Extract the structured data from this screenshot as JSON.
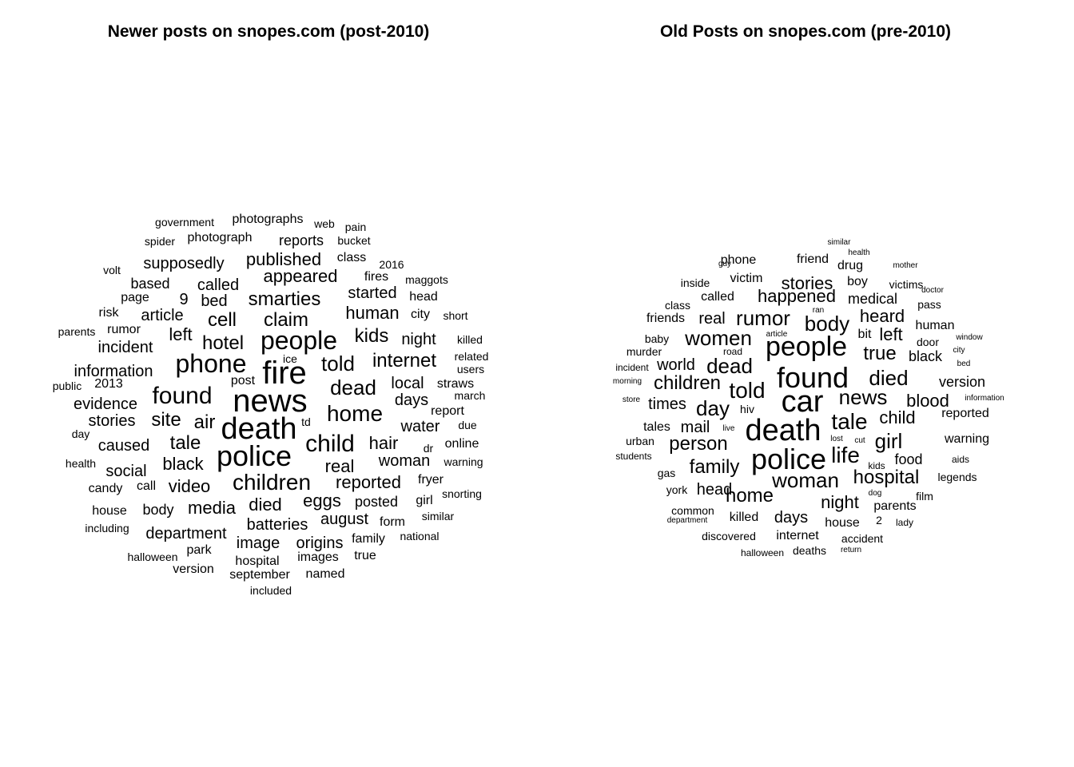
{
  "chart_data": [
    {
      "type": "wordcloud",
      "title": "Newer posts on snopes.com (post-2010)",
      "words": [
        {
          "text": "news",
          "weight": 10
        },
        {
          "text": "fire",
          "weight": 9
        },
        {
          "text": "death",
          "weight": 9
        },
        {
          "text": "police",
          "weight": 9
        },
        {
          "text": "people",
          "weight": 8
        },
        {
          "text": "phone",
          "weight": 8
        },
        {
          "text": "found",
          "weight": 8
        },
        {
          "text": "children",
          "weight": 7
        },
        {
          "text": "child",
          "weight": 7
        },
        {
          "text": "home",
          "weight": 7
        },
        {
          "text": "dead",
          "weight": 6
        },
        {
          "text": "told",
          "weight": 6
        },
        {
          "text": "smarties",
          "weight": 6
        },
        {
          "text": "claim",
          "weight": 6
        },
        {
          "text": "cell",
          "weight": 6
        },
        {
          "text": "hotel",
          "weight": 6
        },
        {
          "text": "internet",
          "weight": 6
        },
        {
          "text": "kids",
          "weight": 6
        },
        {
          "text": "tale",
          "weight": 6
        },
        {
          "text": "site",
          "weight": 6
        },
        {
          "text": "air",
          "weight": 6
        },
        {
          "text": "hair",
          "weight": 5
        },
        {
          "text": "real",
          "weight": 5
        },
        {
          "text": "black",
          "weight": 5
        },
        {
          "text": "video",
          "weight": 5
        },
        {
          "text": "media",
          "weight": 5
        },
        {
          "text": "died",
          "weight": 5
        },
        {
          "text": "eggs",
          "weight": 5
        },
        {
          "text": "reported",
          "weight": 5
        },
        {
          "text": "appeared",
          "weight": 5
        },
        {
          "text": "published",
          "weight": 5
        },
        {
          "text": "human",
          "weight": 5
        },
        {
          "text": "started",
          "weight": 4
        },
        {
          "text": "batteries",
          "weight": 4
        },
        {
          "text": "woman",
          "weight": 4
        },
        {
          "text": "left",
          "weight": 4
        },
        {
          "text": "article",
          "weight": 4
        },
        {
          "text": "bed",
          "weight": 4
        },
        {
          "text": "9",
          "weight": 4
        },
        {
          "text": "called",
          "weight": 4
        },
        {
          "text": "information",
          "weight": 4
        },
        {
          "text": "incident",
          "weight": 4
        },
        {
          "text": "evidence",
          "weight": 4
        },
        {
          "text": "stories",
          "weight": 4
        },
        {
          "text": "caused",
          "weight": 4
        },
        {
          "text": "social",
          "weight": 4
        },
        {
          "text": "local",
          "weight": 4
        },
        {
          "text": "days",
          "weight": 4
        },
        {
          "text": "water",
          "weight": 4
        },
        {
          "text": "night",
          "weight": 4
        },
        {
          "text": "supposedly",
          "weight": 4
        },
        {
          "text": "department",
          "weight": 4
        },
        {
          "text": "image",
          "weight": 4
        },
        {
          "text": "origins",
          "weight": 4
        },
        {
          "text": "august",
          "weight": 4
        },
        {
          "text": "posted",
          "weight": 4
        },
        {
          "text": "body",
          "weight": 4
        },
        {
          "text": "based",
          "weight": 3
        },
        {
          "text": "page",
          "weight": 3
        },
        {
          "text": "photograph",
          "weight": 3
        },
        {
          "text": "photographs",
          "weight": 3
        },
        {
          "text": "reports",
          "weight": 3
        },
        {
          "text": "straws",
          "weight": 3
        },
        {
          "text": "family",
          "weight": 3
        },
        {
          "text": "images",
          "weight": 3
        },
        {
          "text": "hospital",
          "weight": 3
        },
        {
          "text": "september",
          "weight": 3
        },
        {
          "text": "named",
          "weight": 3
        },
        {
          "text": "version",
          "weight": 3
        },
        {
          "text": "fires",
          "weight": 3
        },
        {
          "text": "head",
          "weight": 3
        },
        {
          "text": "class",
          "weight": 3
        },
        {
          "text": "2013",
          "weight": 3
        },
        {
          "text": "post",
          "weight": 3
        },
        {
          "text": "online",
          "weight": 3
        },
        {
          "text": "report",
          "weight": 3
        },
        {
          "text": "fryer",
          "weight": 3
        },
        {
          "text": "candy",
          "weight": 3
        },
        {
          "text": "call",
          "weight": 3
        },
        {
          "text": "house",
          "weight": 3
        },
        {
          "text": "park",
          "weight": 3
        },
        {
          "text": "true",
          "weight": 3
        },
        {
          "text": "form",
          "weight": 3
        },
        {
          "text": "girl",
          "weight": 3
        },
        {
          "text": "killed",
          "weight": 3
        },
        {
          "text": "city",
          "weight": 3
        },
        {
          "text": "rumor",
          "weight": 3
        },
        {
          "text": "risk",
          "weight": 3
        },
        {
          "text": "public",
          "weight": 3
        },
        {
          "text": "td",
          "weight": 3
        },
        {
          "text": "dr",
          "weight": 3
        },
        {
          "text": "warning",
          "weight": 3
        },
        {
          "text": "halloween",
          "weight": 3
        },
        {
          "text": "2016",
          "weight": 3
        },
        {
          "text": "spider",
          "weight": 2
        },
        {
          "text": "government",
          "weight": 2
        },
        {
          "text": "web",
          "weight": 2
        },
        {
          "text": "pain",
          "weight": 2
        },
        {
          "text": "bucket",
          "weight": 2
        },
        {
          "text": "volt",
          "weight": 2
        },
        {
          "text": "maggots",
          "weight": 2
        },
        {
          "text": "short",
          "weight": 2
        },
        {
          "text": "parents",
          "weight": 2
        },
        {
          "text": "related",
          "weight": 2
        },
        {
          "text": "users",
          "weight": 2
        },
        {
          "text": "march",
          "weight": 2
        },
        {
          "text": "due",
          "weight": 2
        },
        {
          "text": "day",
          "weight": 2
        },
        {
          "text": "health",
          "weight": 2
        },
        {
          "text": "snorting",
          "weight": 2
        },
        {
          "text": "similar",
          "weight": 2
        },
        {
          "text": "including",
          "weight": 2
        },
        {
          "text": "national",
          "weight": 2
        },
        {
          "text": "included",
          "weight": 2
        },
        {
          "text": "ice",
          "weight": 2
        }
      ]
    },
    {
      "type": "wordcloud",
      "title": "Old Posts on snopes.com (pre-2010)",
      "words": [
        {
          "text": "car",
          "weight": 10
        },
        {
          "text": "death",
          "weight": 10
        },
        {
          "text": "found",
          "weight": 9
        },
        {
          "text": "police",
          "weight": 9
        },
        {
          "text": "people",
          "weight": 8
        },
        {
          "text": "tale",
          "weight": 7
        },
        {
          "text": "told",
          "weight": 7
        },
        {
          "text": "life",
          "weight": 7
        },
        {
          "text": "rumor",
          "weight": 6
        },
        {
          "text": "body",
          "weight": 6
        },
        {
          "text": "dead",
          "weight": 6
        },
        {
          "text": "women",
          "weight": 6
        },
        {
          "text": "died",
          "weight": 6
        },
        {
          "text": "day",
          "weight": 6
        },
        {
          "text": "news",
          "weight": 6
        },
        {
          "text": "girl",
          "weight": 6
        },
        {
          "text": "woman",
          "weight": 6
        },
        {
          "text": "true",
          "weight": 6
        },
        {
          "text": "hospital",
          "weight": 5
        },
        {
          "text": "home",
          "weight": 5
        },
        {
          "text": "person",
          "weight": 5
        },
        {
          "text": "family",
          "weight": 5
        },
        {
          "text": "children",
          "weight": 5
        },
        {
          "text": "child",
          "weight": 5
        },
        {
          "text": "heard",
          "weight": 5
        },
        {
          "text": "left",
          "weight": 5
        },
        {
          "text": "happened",
          "weight": 5
        },
        {
          "text": "blood",
          "weight": 5
        },
        {
          "text": "night",
          "weight": 5
        },
        {
          "text": "stories",
          "weight": 4
        },
        {
          "text": "head",
          "weight": 4
        },
        {
          "text": "days",
          "weight": 4
        },
        {
          "text": "times",
          "weight": 4
        },
        {
          "text": "mail",
          "weight": 4
        },
        {
          "text": "world",
          "weight": 4
        },
        {
          "text": "real",
          "weight": 4
        },
        {
          "text": "medical",
          "weight": 4
        },
        {
          "text": "food",
          "weight": 4
        },
        {
          "text": "version",
          "weight": 4
        },
        {
          "text": "black",
          "weight": 4
        },
        {
          "text": "friends",
          "weight": 3
        },
        {
          "text": "called",
          "weight": 3
        },
        {
          "text": "tales",
          "weight": 3
        },
        {
          "text": "phone",
          "weight": 3
        },
        {
          "text": "friend",
          "weight": 3
        },
        {
          "text": "drug",
          "weight": 3
        },
        {
          "text": "victim",
          "weight": 3
        },
        {
          "text": "boy",
          "weight": 3
        },
        {
          "text": "bit",
          "weight": 3
        },
        {
          "text": "human",
          "weight": 3
        },
        {
          "text": "reported",
          "weight": 3
        },
        {
          "text": "warning",
          "weight": 3
        },
        {
          "text": "parents",
          "weight": 3
        },
        {
          "text": "killed",
          "weight": 3
        },
        {
          "text": "internet",
          "weight": 3
        },
        {
          "text": "house",
          "weight": 3
        },
        {
          "text": "hiv",
          "weight": 2
        },
        {
          "text": "baby",
          "weight": 2
        },
        {
          "text": "murder",
          "weight": 2
        },
        {
          "text": "class",
          "weight": 2
        },
        {
          "text": "inside",
          "weight": 2
        },
        {
          "text": "guy",
          "weight": 1
        },
        {
          "text": "victims",
          "weight": 2
        },
        {
          "text": "doctor",
          "weight": 1
        },
        {
          "text": "pass",
          "weight": 2
        },
        {
          "text": "door",
          "weight": 2
        },
        {
          "text": "city",
          "weight": 1
        },
        {
          "text": "bed",
          "weight": 1
        },
        {
          "text": "incident",
          "weight": 2
        },
        {
          "text": "urban",
          "weight": 2
        },
        {
          "text": "students",
          "weight": 2
        },
        {
          "text": "gas",
          "weight": 2
        },
        {
          "text": "york",
          "weight": 2
        },
        {
          "text": "common",
          "weight": 2
        },
        {
          "text": "department",
          "weight": 1
        },
        {
          "text": "discovered",
          "weight": 2
        },
        {
          "text": "halloween",
          "weight": 1
        },
        {
          "text": "deaths",
          "weight": 2
        },
        {
          "text": "return",
          "weight": 1
        },
        {
          "text": "accident",
          "weight": 2
        },
        {
          "text": "lady",
          "weight": 1
        },
        {
          "text": "2",
          "weight": 2
        },
        {
          "text": "dog",
          "weight": 1
        },
        {
          "text": "film",
          "weight": 2
        },
        {
          "text": "legends",
          "weight": 2
        },
        {
          "text": "aids",
          "weight": 1
        },
        {
          "text": "kids",
          "weight": 2
        },
        {
          "text": "cut",
          "weight": 1
        },
        {
          "text": "lost",
          "weight": 1
        },
        {
          "text": "live",
          "weight": 1
        },
        {
          "text": "store",
          "weight": 1
        },
        {
          "text": "morning",
          "weight": 1
        },
        {
          "text": "road",
          "weight": 1
        },
        {
          "text": "article",
          "weight": 1
        },
        {
          "text": "ran",
          "weight": 1
        },
        {
          "text": "window",
          "weight": 1
        },
        {
          "text": "information",
          "weight": 1
        },
        {
          "text": "similar",
          "weight": 1
        },
        {
          "text": "health",
          "weight": 1
        },
        {
          "text": "mother",
          "weight": 1
        }
      ]
    }
  ]
}
